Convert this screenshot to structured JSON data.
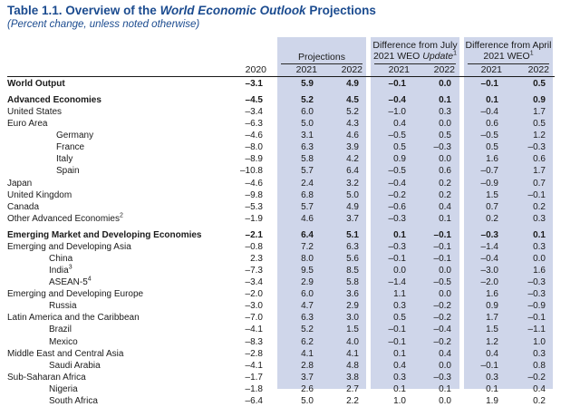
{
  "header": {
    "title_prefix": "Table 1.1. Overview of the ",
    "title_italic": "World Economic Outlook",
    "title_suffix": " Projections",
    "subtitle": "(Percent change, unless noted otherwise)"
  },
  "columns": {
    "projections_label": "Projections",
    "july_label_line1": "Difference from July",
    "july_label_line2_prefix": "2021 WEO ",
    "july_label_line2_italic": "Update",
    "july_label_sup": "1",
    "april_label_line1": "Difference from April",
    "april_label_line2": "2021 WEO",
    "april_label_sup": "1",
    "years": [
      "2020",
      "2021",
      "2022",
      "2021",
      "2022",
      "2021",
      "2022"
    ]
  },
  "rows": [
    {
      "label": "World Output",
      "sup": "",
      "indent": 0,
      "bold": true,
      "sp": false,
      "values": [
        "–3.1",
        "5.9",
        "4.9",
        "–0.1",
        "0.0",
        "–0.1",
        "0.5"
      ]
    },
    {
      "label": "Advanced Economies",
      "sup": "",
      "indent": 0,
      "bold": true,
      "sp": true,
      "values": [
        "–4.5",
        "5.2",
        "4.5",
        "–0.4",
        "0.1",
        "0.1",
        "0.9"
      ]
    },
    {
      "label": "United States",
      "sup": "",
      "indent": 0,
      "bold": false,
      "sp": false,
      "values": [
        "–3.4",
        "6.0",
        "5.2",
        "–1.0",
        "0.3",
        "–0.4",
        "1.7"
      ]
    },
    {
      "label": "Euro Area",
      "sup": "",
      "indent": 0,
      "bold": false,
      "sp": false,
      "values": [
        "–6.3",
        "5.0",
        "4.3",
        "0.4",
        "0.0",
        "0.6",
        "0.5"
      ]
    },
    {
      "label": "Germany",
      "sup": "",
      "indent": 2,
      "bold": false,
      "sp": false,
      "values": [
        "–4.6",
        "3.1",
        "4.6",
        "–0.5",
        "0.5",
        "–0.5",
        "1.2"
      ]
    },
    {
      "label": "France",
      "sup": "",
      "indent": 2,
      "bold": false,
      "sp": false,
      "values": [
        "–8.0",
        "6.3",
        "3.9",
        "0.5",
        "–0.3",
        "0.5",
        "–0.3"
      ]
    },
    {
      "label": "Italy",
      "sup": "",
      "indent": 2,
      "bold": false,
      "sp": false,
      "values": [
        "–8.9",
        "5.8",
        "4.2",
        "0.9",
        "0.0",
        "1.6",
        "0.6"
      ]
    },
    {
      "label": "Spain",
      "sup": "",
      "indent": 2,
      "bold": false,
      "sp": false,
      "values": [
        "–10.8",
        "5.7",
        "6.4",
        "–0.5",
        "0.6",
        "–0.7",
        "1.7"
      ]
    },
    {
      "label": "Japan",
      "sup": "",
      "indent": 0,
      "bold": false,
      "sp": false,
      "values": [
        "–4.6",
        "2.4",
        "3.2",
        "–0.4",
        "0.2",
        "–0.9",
        "0.7"
      ]
    },
    {
      "label": "United Kingdom",
      "sup": "",
      "indent": 0,
      "bold": false,
      "sp": false,
      "values": [
        "–9.8",
        "6.8",
        "5.0",
        "–0.2",
        "0.2",
        "1.5",
        "–0.1"
      ]
    },
    {
      "label": "Canada",
      "sup": "",
      "indent": 0,
      "bold": false,
      "sp": false,
      "values": [
        "–5.3",
        "5.7",
        "4.9",
        "–0.6",
        "0.4",
        "0.7",
        "0.2"
      ]
    },
    {
      "label": "Other Advanced Economies",
      "sup": "2",
      "indent": 0,
      "bold": false,
      "sp": false,
      "values": [
        "–1.9",
        "4.6",
        "3.7",
        "–0.3",
        "0.1",
        "0.2",
        "0.3"
      ]
    },
    {
      "label": "Emerging Market and Developing Economies",
      "sup": "",
      "indent": 0,
      "bold": true,
      "sp": true,
      "values": [
        "–2.1",
        "6.4",
        "5.1",
        "0.1",
        "–0.1",
        "–0.3",
        "0.1"
      ]
    },
    {
      "label": "Emerging and Developing Asia",
      "sup": "",
      "indent": 0,
      "bold": false,
      "sp": false,
      "values": [
        "–0.8",
        "7.2",
        "6.3",
        "–0.3",
        "–0.1",
        "–1.4",
        "0.3"
      ]
    },
    {
      "label": "China",
      "sup": "",
      "indent": 1,
      "bold": false,
      "sp": false,
      "values": [
        "2.3",
        "8.0",
        "5.6",
        "–0.1",
        "–0.1",
        "–0.4",
        "0.0"
      ]
    },
    {
      "label": "India",
      "sup": "3",
      "indent": 1,
      "bold": false,
      "sp": false,
      "values": [
        "–7.3",
        "9.5",
        "8.5",
        "0.0",
        "0.0",
        "–3.0",
        "1.6"
      ]
    },
    {
      "label": "ASEAN-5",
      "sup": "4",
      "indent": 1,
      "bold": false,
      "sp": false,
      "values": [
        "–3.4",
        "2.9",
        "5.8",
        "–1.4",
        "–0.5",
        "–2.0",
        "–0.3"
      ]
    },
    {
      "label": "Emerging and Developing Europe",
      "sup": "",
      "indent": 0,
      "bold": false,
      "sp": false,
      "values": [
        "–2.0",
        "6.0",
        "3.6",
        "1.1",
        "0.0",
        "1.6",
        "–0.3"
      ]
    },
    {
      "label": "Russia",
      "sup": "",
      "indent": 1,
      "bold": false,
      "sp": false,
      "values": [
        "–3.0",
        "4.7",
        "2.9",
        "0.3",
        "–0.2",
        "0.9",
        "–0.9"
      ]
    },
    {
      "label": "Latin America and the Caribbean",
      "sup": "",
      "indent": 0,
      "bold": false,
      "sp": false,
      "values": [
        "–7.0",
        "6.3",
        "3.0",
        "0.5",
        "–0.2",
        "1.7",
        "–0.1"
      ]
    },
    {
      "label": "Brazil",
      "sup": "",
      "indent": 1,
      "bold": false,
      "sp": false,
      "values": [
        "–4.1",
        "5.2",
        "1.5",
        "–0.1",
        "–0.4",
        "1.5",
        "–1.1"
      ]
    },
    {
      "label": "Mexico",
      "sup": "",
      "indent": 1,
      "bold": false,
      "sp": false,
      "values": [
        "–8.3",
        "6.2",
        "4.0",
        "–0.1",
        "–0.2",
        "1.2",
        "1.0"
      ]
    },
    {
      "label": "Middle East and Central Asia",
      "sup": "",
      "indent": 0,
      "bold": false,
      "sp": false,
      "values": [
        "–2.8",
        "4.1",
        "4.1",
        "0.1",
        "0.4",
        "0.4",
        "0.3"
      ]
    },
    {
      "label": "Saudi Arabia",
      "sup": "",
      "indent": 1,
      "bold": false,
      "sp": false,
      "values": [
        "–4.1",
        "2.8",
        "4.8",
        "0.4",
        "0.0",
        "–0.1",
        "0.8"
      ]
    },
    {
      "label": "Sub-Saharan Africa",
      "sup": "",
      "indent": 0,
      "bold": false,
      "sp": false,
      "values": [
        "–1.7",
        "3.7",
        "3.8",
        "0.3",
        "–0.3",
        "0.3",
        "–0.2"
      ]
    },
    {
      "label": "Nigeria",
      "sup": "",
      "indent": 1,
      "bold": false,
      "sp": false,
      "values": [
        "–1.8",
        "2.6",
        "2.7",
        "0.1",
        "0.1",
        "0.1",
        "0.4"
      ]
    },
    {
      "label": "South Africa",
      "sup": "",
      "indent": 1,
      "bold": false,
      "sp": false,
      "values": [
        "–6.4",
        "5.0",
        "2.2",
        "1.0",
        "0.0",
        "1.9",
        "0.2"
      ]
    }
  ]
}
